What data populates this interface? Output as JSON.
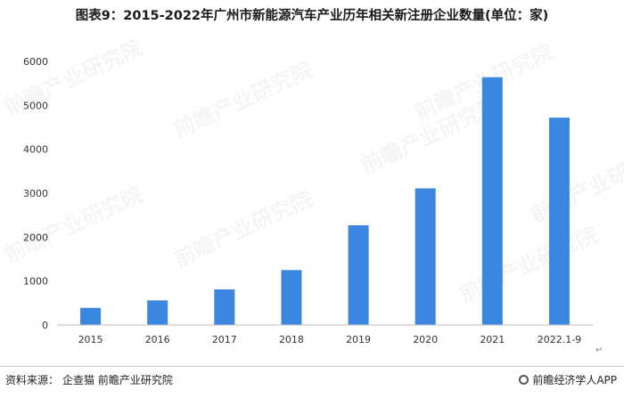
{
  "chart_data": {
    "type": "bar",
    "title": "图表9：2015-2022年广州市新能源汽车产业历年相关新注册企业数量(单位：家)",
    "categories": [
      "2015",
      "2016",
      "2017",
      "2018",
      "2019",
      "2020",
      "2021",
      "2022.1-9"
    ],
    "values": [
      390,
      560,
      810,
      1250,
      2270,
      3110,
      5640,
      4720
    ],
    "ylim": [
      0,
      6000
    ],
    "yticks": [
      0,
      1000,
      2000,
      3000,
      4000,
      5000,
      6000
    ],
    "bar_color": "#3a86e0",
    "grid": false,
    "legend": "none"
  },
  "footer": {
    "source_label": "资料来源：",
    "source_value": "企查猫 前瞻产业研究院",
    "brand": "前瞻经济学人APP",
    "brand_icon": "qianzhan-logo-icon"
  },
  "watermark": {
    "text": "前瞻产业研究院"
  },
  "para_mark": "↵"
}
